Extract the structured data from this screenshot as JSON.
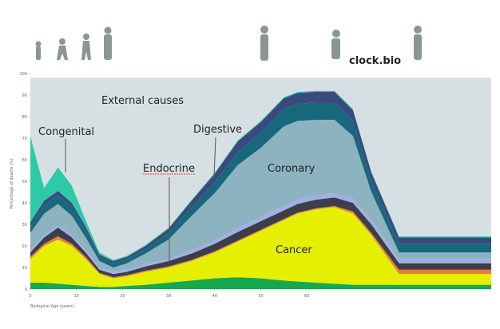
{
  "brand": "clock.bio",
  "chart_data": {
    "type": "stacked-area",
    "x_label": "Biological Age (years)",
    "y_label": "Percentage of deaths (%)",
    "xlim": [
      0,
      100
    ],
    "ylim": [
      0,
      100
    ],
    "xticks": [
      0,
      10,
      20,
      30,
      40,
      50,
      60
    ],
    "yticks": [
      0,
      10,
      20,
      30,
      40,
      50,
      60,
      70,
      80,
      90,
      100
    ],
    "x": [
      0,
      3,
      6,
      9,
      12,
      15,
      18,
      21,
      25,
      30,
      35,
      40,
      45,
      50,
      55,
      58,
      62,
      66,
      70,
      74,
      80,
      90,
      100
    ],
    "series": [
      {
        "color": "#17a84e",
        "values": [
          3,
          3,
          2.5,
          2,
          1.5,
          1,
          1,
          1.5,
          2,
          3,
          4,
          5,
          5.5,
          5,
          4,
          3.5,
          3,
          2.5,
          2,
          2,
          2,
          2,
          2
        ]
      },
      {
        "name": "Cancer",
        "color": "#e4f000",
        "values": [
          11,
          17,
          20.5,
          18,
          12.5,
          6,
          4,
          4.5,
          6,
          7,
          9,
          12,
          16.5,
          22,
          28,
          31.5,
          34,
          35.5,
          33,
          23,
          5,
          5,
          5
        ]
      },
      {
        "color": "#f07a3c",
        "values": [
          1,
          1,
          1.5,
          1,
          1,
          0.5,
          0.5,
          0.5,
          0.5,
          0.5,
          0.5,
          0.5,
          0.5,
          0.5,
          0.5,
          0.5,
          0.5,
          0.5,
          1,
          1,
          2,
          2,
          2
        ]
      },
      {
        "name": "Endocrine",
        "color": "#3b3f4a",
        "values": [
          2,
          3,
          4,
          3,
          2,
          1.5,
          1.5,
          1.5,
          2,
          2.5,
          3,
          3.5,
          4,
          4,
          4,
          4,
          4,
          4,
          4,
          4,
          3,
          3,
          3
        ]
      },
      {
        "color": "#a3aee6",
        "values": [
          1,
          1,
          1,
          1,
          1,
          1,
          1,
          1,
          1,
          1,
          1.5,
          1.5,
          2,
          2,
          2,
          2,
          2,
          2,
          2,
          2,
          2,
          2,
          2
        ]
      },
      {
        "name": "Coronary",
        "color": "#8db2c0",
        "values": [
          8,
          10,
          10,
          9,
          6,
          3,
          2,
          3,
          5,
          9,
          16,
          22,
          29,
          32,
          37,
          36.5,
          35,
          34,
          29,
          13,
          3,
          3,
          3
        ]
      },
      {
        "color": "#17687c",
        "values": [
          3,
          4,
          4,
          4,
          3,
          2,
          2,
          2,
          2,
          3,
          4,
          5,
          6,
          7,
          8,
          8,
          8,
          8,
          7,
          5,
          4,
          4,
          4
        ]
      },
      {
        "name": "Digestive",
        "color": "#3a4a7c",
        "values": [
          2,
          2,
          2,
          2,
          2,
          1,
          1,
          1,
          1.5,
          2,
          3,
          4,
          5,
          5,
          5,
          5,
          5,
          5,
          5,
          4,
          3,
          3,
          3
        ]
      },
      {
        "name": "Congenital",
        "color": "#2ecaa8",
        "values": [
          40,
          6,
          11,
          8,
          3,
          1,
          0.5,
          0.5,
          0.5,
          0.5,
          0.5,
          0.5,
          0.5,
          0.5,
          0.5,
          0.5,
          0.5,
          0.5,
          0.5,
          0.5,
          0.5,
          0.5,
          0.5
        ]
      },
      {
        "name": "External causes",
        "color": "#d6e0e3",
        "values": [
          27,
          51,
          41.5,
          50,
          66,
          81,
          84.5,
          82.5,
          77.5,
          69.5,
          56.5,
          44,
          29,
          20,
          9,
          6.5,
          6,
          6,
          14.5,
          43.5,
          73.5,
          73.5,
          73.5
        ]
      }
    ]
  }
}
